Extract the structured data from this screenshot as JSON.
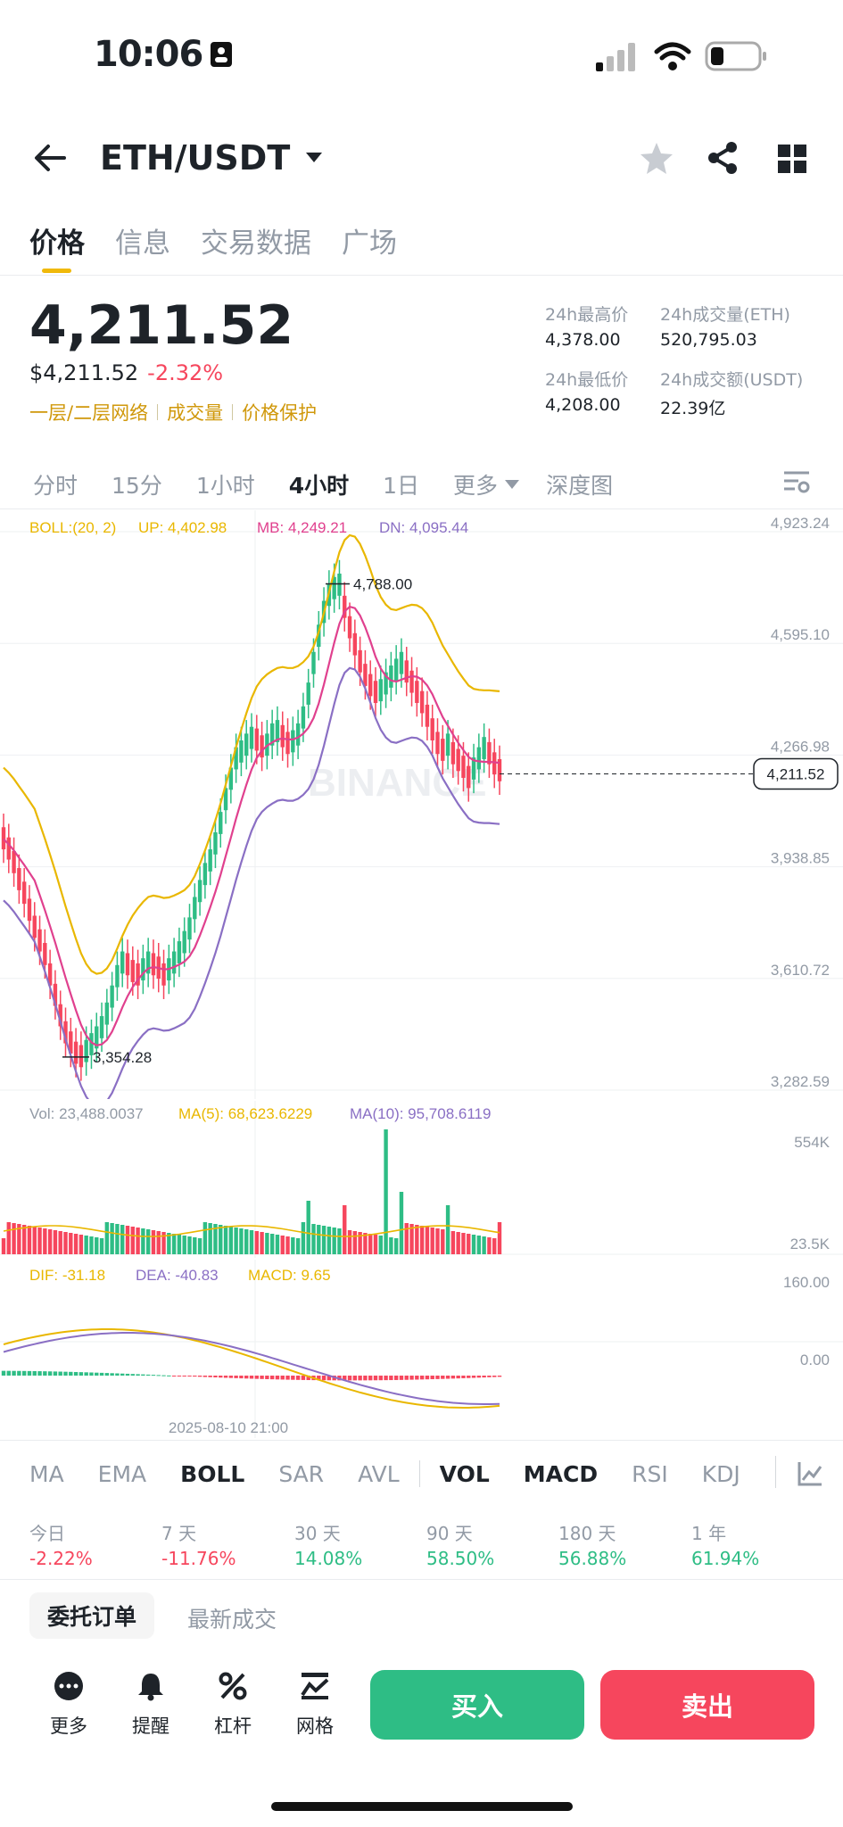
{
  "status_bar": {
    "time": "10:06"
  },
  "header": {
    "pair": "ETH/USDT"
  },
  "tabs": [
    "价格",
    "信息",
    "交易数据",
    "广场"
  ],
  "price": {
    "last": "4,211.52",
    "usd": "$4,211.52",
    "change": "-2.32%",
    "tags": [
      "一层/二层网络",
      "成交量",
      "价格保护"
    ]
  },
  "stats": {
    "high_label": "24h最高价",
    "high": "4,378.00",
    "vol_eth_label": "24h成交量(ETH)",
    "vol_eth": "520,795.03",
    "low_label": "24h最低价",
    "low": "4,208.00",
    "vol_usdt_label": "24h成交额(USDT)",
    "vol_usdt": "22.39亿"
  },
  "intervals": [
    "分时",
    "15分",
    "1小时",
    "4小时",
    "1日",
    "更多",
    "深度图"
  ],
  "chart_data": {
    "type": "candlestick",
    "boll": {
      "label": "BOLL:(20, 2)",
      "up": "UP: 4,402.98",
      "mb": "MB: 4,249.21",
      "dn": "DN: 4,095.44"
    },
    "y_ticks": [
      "4,923.24",
      "4,595.10",
      "4,266.98",
      "3,938.85",
      "3,610.72",
      "3,282.59"
    ],
    "last_price_tag": "4,211.52",
    "high_annotation": "4,788.00",
    "low_annotation": "3,354.28",
    "watermark": "BINANCE",
    "volume": {
      "vol": "Vol: 23,488.0037",
      "ma5": "MA(5): 68,623.6229",
      "ma10": "MA(10): 95,708.6119",
      "y_ticks": [
        "554K",
        "23.5K"
      ]
    },
    "macd": {
      "dif": "DIF: -31.18",
      "dea": "DEA: -40.83",
      "macd": "MACD: 9.65",
      "y_ticks": [
        "160.00",
        "0.00"
      ]
    },
    "x_label": "2025-08-10 21:00"
  },
  "indicators": [
    "MA",
    "EMA",
    "BOLL",
    "SAR",
    "AVL",
    "VOL",
    "MACD",
    "RSI",
    "KDJ"
  ],
  "performance": [
    {
      "label": "今日",
      "value": "-2.22%"
    },
    {
      "label": "7 天",
      "value": "-11.76%"
    },
    {
      "label": "30 天",
      "value": "14.08%"
    },
    {
      "label": "90 天",
      "value": "58.50%"
    },
    {
      "label": "180 天",
      "value": "56.88%"
    },
    {
      "label": "1 年",
      "value": "61.94%"
    }
  ],
  "orders_tabs": [
    "委托订单",
    "最新成交"
  ],
  "bottom_bar": {
    "items": [
      "更多",
      "提醒",
      "杠杆",
      "网格"
    ],
    "buy": "买入",
    "sell": "卖出"
  },
  "colors": {
    "up": "#2ebd85",
    "down": "#f6465d",
    "accent": "#f0b90b",
    "boll_up": "#e9b700",
    "boll_mb": "#e0408e",
    "boll_dn": "#8a6fc4"
  }
}
